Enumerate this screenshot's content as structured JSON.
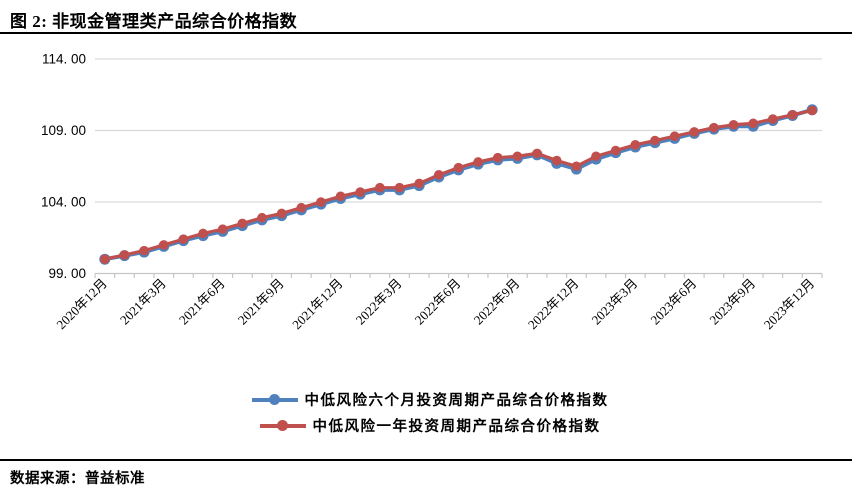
{
  "header": {
    "title": "图 2: 非现金管理类产品综合价格指数"
  },
  "footer": {
    "source": "数据来源：普益标准"
  },
  "colors": {
    "series_6m_blue": "#4F81BD",
    "series_1y_red": "#C0504D",
    "gridline": "#D9D9D9",
    "axis": "#C6C6C6",
    "text": "#000000"
  },
  "legend": {
    "items": [
      {
        "label": "中低风险六个月投资周期产品综合价格指数",
        "color": "#4F81BD",
        "icon": "line-with-round-marker"
      },
      {
        "label": "中低风险一年投资周期产品综合价格指数",
        "color": "#C0504D",
        "icon": "line-with-round-marker"
      }
    ]
  },
  "chart_data": {
    "type": "line",
    "title": "非现金管理类产品综合价格指数",
    "xlabel": "",
    "ylabel": "",
    "ylim": [
      99,
      114
    ],
    "yticks": [
      99,
      104,
      109,
      114
    ],
    "y_tick_labels": [
      "99. 00",
      "104. 00",
      "109. 00",
      "114. 00"
    ],
    "x_tick_interval": 3,
    "x_tick_labels": [
      "2020年12月",
      "2021年3月",
      "2021年6月",
      "2021年9月",
      "2021年12月",
      "2022年3月",
      "2022年6月",
      "2022年9月",
      "2022年12月",
      "2023年3月",
      "2023年6月",
      "2023年9月",
      "2023年12月"
    ],
    "grid": "horizontal",
    "legend_position": "bottom",
    "categories": [
      "2020年12月",
      "2021年1月",
      "2021年2月",
      "2021年3月",
      "2021年4月",
      "2021年5月",
      "2021年6月",
      "2021年7月",
      "2021年8月",
      "2021年9月",
      "2021年10月",
      "2021年11月",
      "2021年12月",
      "2022年1月",
      "2022年2月",
      "2022年3月",
      "2022年4月",
      "2022年5月",
      "2022年6月",
      "2022年7月",
      "2022年8月",
      "2022年9月",
      "2022年10月",
      "2022年11月",
      "2022年12月",
      "2023年1月",
      "2023年2月",
      "2023年3月",
      "2023年4月",
      "2023年5月",
      "2023年6月",
      "2023年7月",
      "2023年8月",
      "2023年9月",
      "2023年10月",
      "2023年11月",
      "2023年12月"
    ],
    "series": [
      {
        "name": "中低风险六个月投资周期产品综合价格指数",
        "color": "#4F81BD",
        "values": [
          100.0,
          100.25,
          100.5,
          100.9,
          101.3,
          101.65,
          101.95,
          102.35,
          102.75,
          103.05,
          103.45,
          103.85,
          104.25,
          104.55,
          104.85,
          104.85,
          105.15,
          105.75,
          106.25,
          106.65,
          106.95,
          107.05,
          107.3,
          106.7,
          106.3,
          107.0,
          107.45,
          107.85,
          108.15,
          108.45,
          108.8,
          109.1,
          109.3,
          109.3,
          109.7,
          110.05,
          110.45
        ]
      },
      {
        "name": "中低风险一年投资周期产品综合价格指数",
        "color": "#C0504D",
        "values": [
          100.0,
          100.3,
          100.6,
          101.0,
          101.4,
          101.8,
          102.1,
          102.5,
          102.9,
          103.2,
          103.6,
          104.0,
          104.4,
          104.7,
          105.0,
          105.0,
          105.3,
          105.9,
          106.4,
          106.8,
          107.1,
          107.2,
          107.4,
          106.9,
          106.5,
          107.2,
          107.6,
          108.0,
          108.3,
          108.6,
          108.9,
          109.2,
          109.4,
          109.5,
          109.8,
          110.1,
          110.4
        ]
      }
    ]
  }
}
